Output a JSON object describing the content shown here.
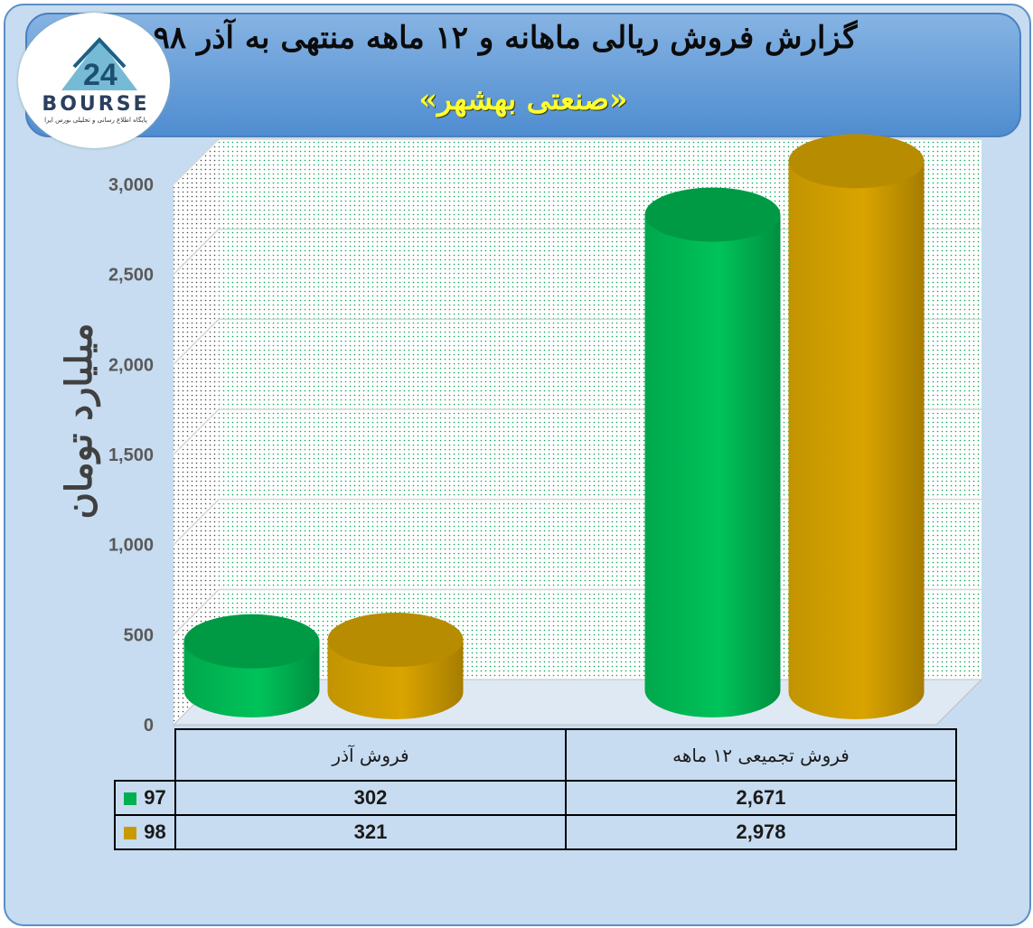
{
  "title": {
    "line1": "گزارش فروش ریالی ماهانه و ۱۲ ماهه منتهی به آذر ۹۸",
    "line2": "«صنعتی بهشهر»"
  },
  "logo": {
    "word": "BOURSE",
    "tagline": "پایگاه اطلاع رسانی و تحلیلی بورس ایرا"
  },
  "colors": {
    "series97": "#00b050",
    "series98": "#c99a00",
    "frame": "#c7dcf0",
    "banner": "#5b9bd5",
    "subtitle": "#ffff00"
  },
  "chart_data": {
    "type": "bar",
    "ylabel": "میلیارد تومان",
    "ylim": [
      0,
      3000
    ],
    "yticks": [
      "0",
      "500",
      "1,000",
      "1,500",
      "2,000",
      "2,500",
      "3,000"
    ],
    "grid": true,
    "categories": [
      "فروش آذر",
      "فروش تجمیعی ۱۲ ماهه"
    ],
    "series": [
      {
        "name": "97",
        "values": [
          302,
          2671
        ],
        "labels": [
          "302",
          "2,671"
        ],
        "color": "#00b050"
      },
      {
        "name": "98",
        "values": [
          321,
          2978
        ],
        "labels": [
          "321",
          "2,978"
        ],
        "color": "#c99a00"
      }
    ]
  }
}
